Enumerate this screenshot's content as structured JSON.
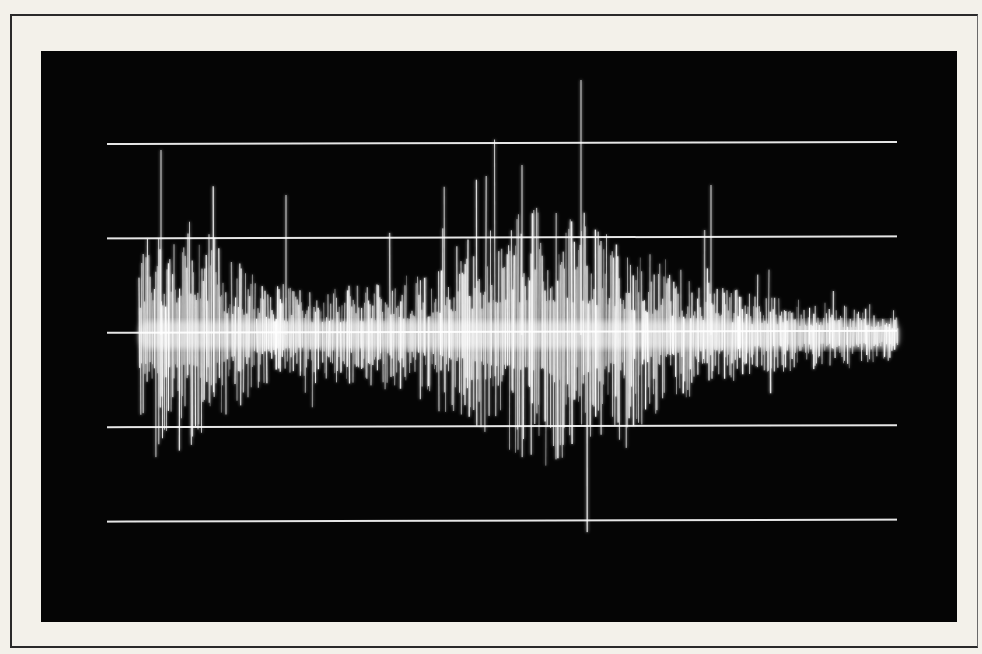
{
  "image": {
    "subject": "oscilloscope-photograph",
    "colors": {
      "paper": "#f3f1ea",
      "screen": "#050505",
      "graticule": "#e6e6e6",
      "trace": "#ffffff"
    },
    "graticule_line_count": 5
  }
}
